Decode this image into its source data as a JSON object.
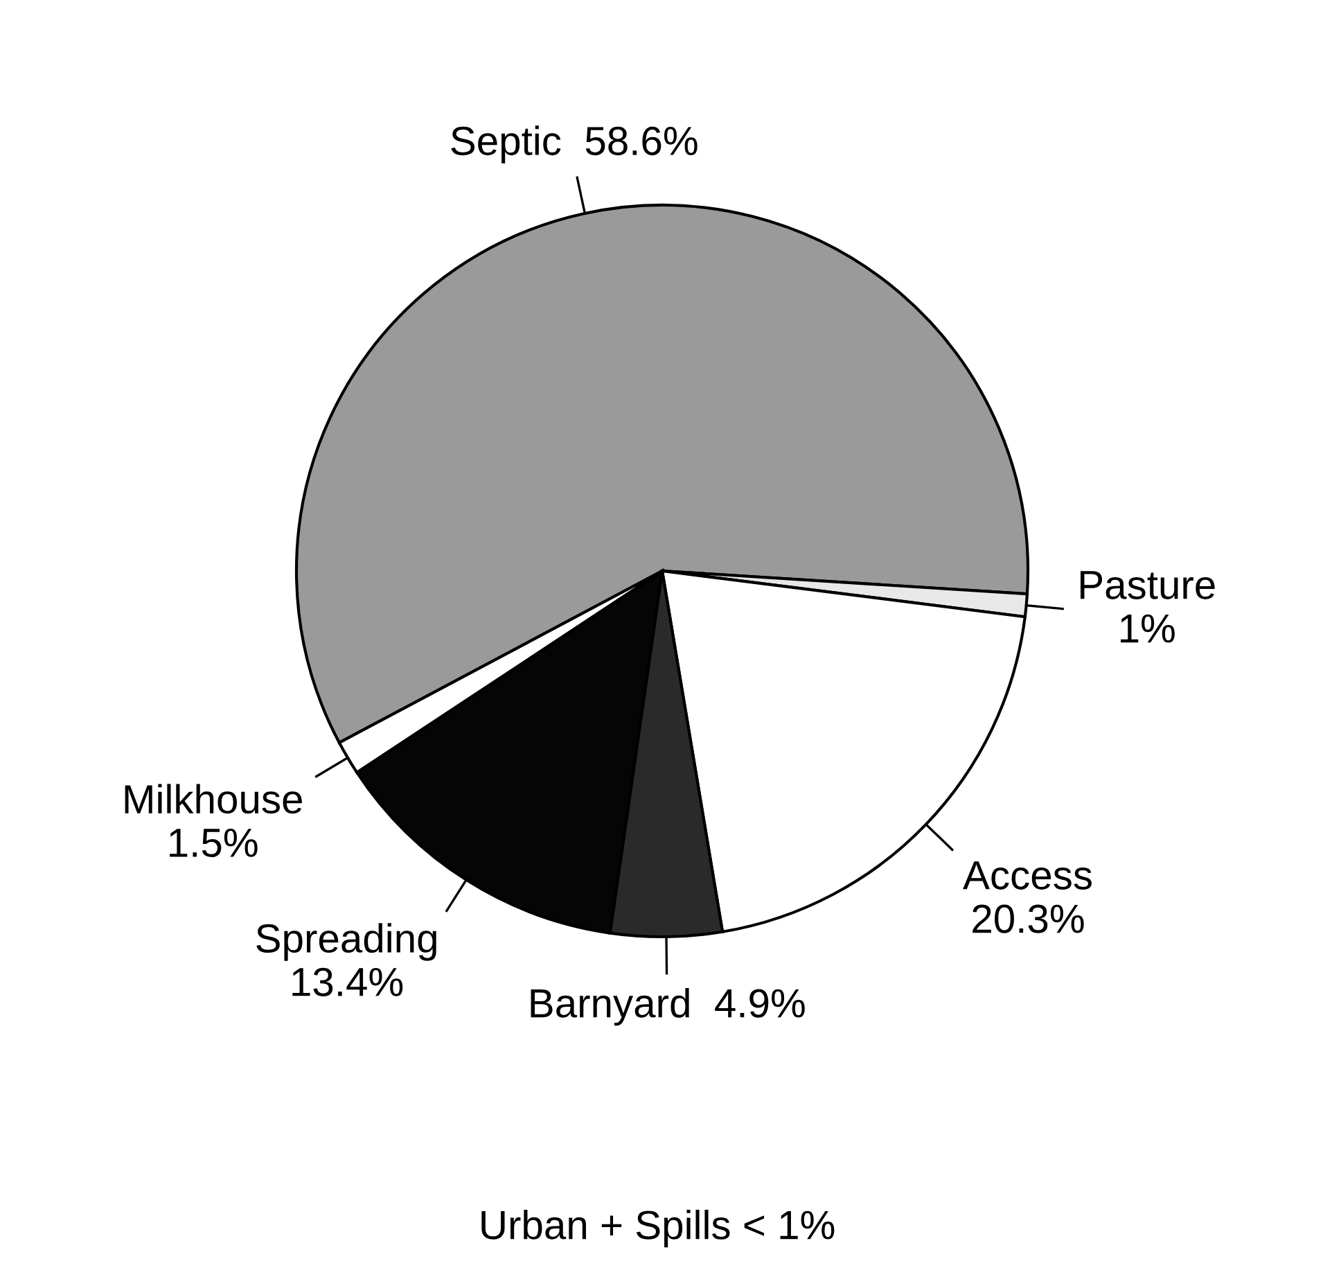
{
  "chart_data": {
    "type": "pie",
    "categories": [
      "Septic",
      "Pasture",
      "Access",
      "Barnyard",
      "Spreading",
      "Milkhouse"
    ],
    "values": [
      58.6,
      1,
      20.3,
      4.9,
      13.4,
      1.5
    ],
    "value_labels": [
      "58.6%",
      "1%",
      "20.3%",
      "4.9%",
      "13.4%",
      "1.5%"
    ],
    "colors": [
      "#9a9a9a",
      "#e8e8e8",
      "#ffffff",
      "#2a2a2a",
      "#050505",
      "#ffffff"
    ],
    "annotations": [
      "Urban + Spills < 1%"
    ]
  }
}
